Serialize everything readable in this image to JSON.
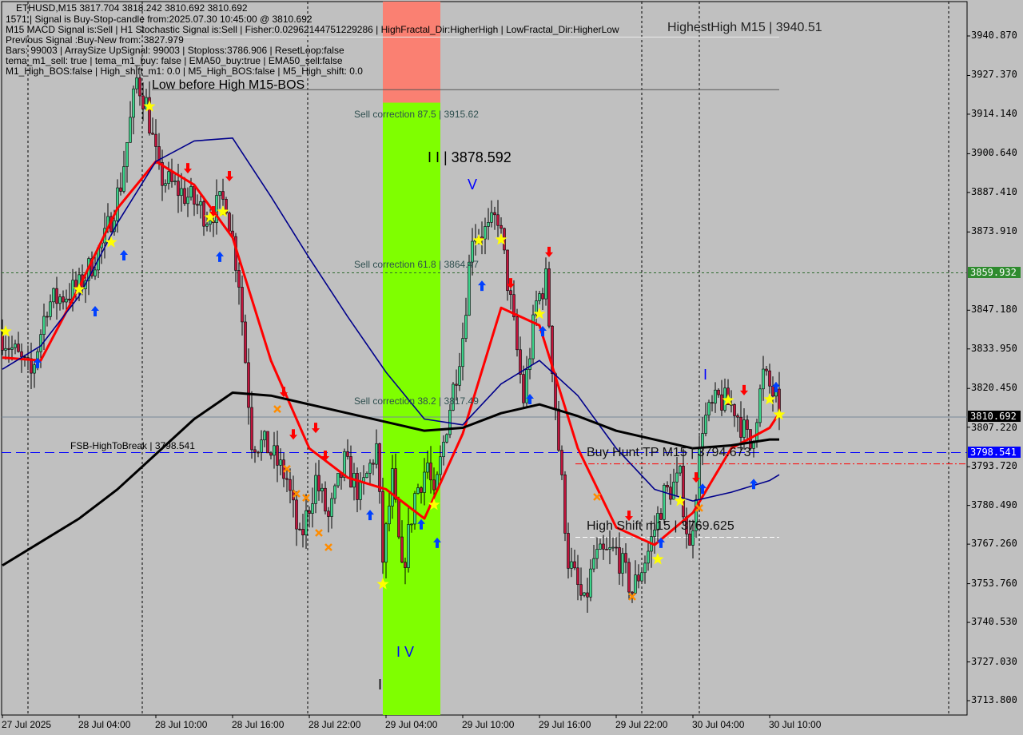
{
  "header": {
    "symbol_line": "ETHUSD,M15  3817.704 3818.242 3810.692 3810.692",
    "lines": [
      "1571 | Signal is Buy-Stop-candle from:2025.07.30 10:45:00 @ 3810.692",
      "M15 MACD Signal is:Sell | H1 Stochastic Signal is:Sell | Fisher:0.02962144751229286 | HighFractal_Dir:HigherHigh | LowFractal_Dir:HigherLow",
      "Previous Signal :Buy-New from: 3827.979",
      "Bars: 99003 | ArraySize UpSignal: 99003 | Stoploss:3786.906 | ResetLoop:false",
      "tema_m1_sell: true | tema_m1_buy: false | EMA50_buy:true | EMA50_sell:false",
      "M1_High_BOS:false | High_shift_m1: 0.0 | M5_High_BOS:false | M5_High_shift: 0.0"
    ]
  },
  "annotations": {
    "highest_high": "HighestHigh   M15 | 3940.51",
    "low_before_high": "Low before High   M15-BOS",
    "sell_corr_875": "Sell correction 87.5 | 3915.62",
    "sell_corr_618": "Sell correction 61.8 | 3864.47",
    "sell_corr_382": "Sell correction 38.2 | 3817.49",
    "wave_ii": "I I | 3878.592",
    "wave_v": "V",
    "wave_iv": "I V",
    "wave_i_low": "I",
    "wave_i_right": "I",
    "fsb": "FSB-HighToBreak | 3798.541",
    "buy_hunt": "Buy Hunt TP M15 | 3794.673",
    "high_shift": "High Shift m15 | 3769.625"
  },
  "price_labels": {
    "green": "3859.932",
    "current": "3810.692",
    "blue": "3798.541"
  },
  "colors": {
    "background": "#c0c0c0",
    "bull": "#3cd38a",
    "bear": "#c0143c",
    "ema_fast": "#ff0000",
    "ma_mid": "#00008b",
    "ma_slow": "#000000",
    "zone_sell": "#fa8072",
    "zone_buy": "#7fff00",
    "current_price_bg": "#000000",
    "green_level": "#2e8b2e",
    "blue_level": "#0000ff"
  },
  "chart_data": {
    "type": "candlestick",
    "title": "ETHUSD,M15",
    "y_ticks": [
      "3940.870",
      "3927.370",
      "3914.140",
      "3900.640",
      "3887.410",
      "3873.910",
      "3847.180",
      "3833.950",
      "3820.450",
      "3807.220",
      "3793.720",
      "3780.490",
      "3767.260",
      "3753.760",
      "3740.530",
      "3727.030",
      "3713.800"
    ],
    "x_ticks": [
      "27 Jul 2025",
      "28 Jul 04:00",
      "28 Jul 10:00",
      "28 Jul 16:00",
      "28 Jul 22:00",
      "29 Jul 04:00",
      "29 Jul 10:00",
      "29 Jul 16:00",
      "29 Jul 22:00",
      "30 Jul 04:00",
      "30 Jul 10:00"
    ],
    "ylim": [
      3713.8,
      3940.87
    ],
    "close_path": [
      [
        "2025-07-27 22:00",
        3838.5
      ],
      [
        "2025-07-28 00:15",
        3824.9
      ],
      [
        "2025-07-28 01:30",
        3849.4
      ],
      [
        "2025-07-28 04:00",
        3854.9
      ],
      [
        "2025-07-28 06:00",
        3871.3
      ],
      [
        "2025-07-28 07:15",
        3890.4
      ],
      [
        "2025-07-28 08:30",
        3925.9
      ],
      [
        "2025-07-28 09:15",
        3917.7
      ],
      [
        "2025-07-28 10:15",
        3893.1
      ],
      [
        "2025-07-28 12:45",
        3885.0
      ],
      [
        "2025-07-28 14:00",
        3879.5
      ],
      [
        "2025-07-28 15:30",
        3885.0
      ],
      [
        "2025-07-28 16:30",
        3857.6
      ],
      [
        "2025-07-28 17:30",
        3803.0
      ],
      [
        "2025-07-28 18:45",
        3800.3
      ],
      [
        "2025-07-28 20:15",
        3789.4
      ],
      [
        "2025-07-28 21:15",
        3767.6
      ],
      [
        "2025-07-28 22:30",
        3789.4
      ],
      [
        "2025-07-28 23:30",
        3775.8
      ],
      [
        "2025-07-29 00:45",
        3794.9
      ],
      [
        "2025-07-29 02:00",
        3784.0
      ],
      [
        "2025-07-29 03:15",
        3800.3
      ],
      [
        "2025-07-29 03:45",
        3762.0
      ],
      [
        "2025-07-29 04:30",
        3789.4
      ],
      [
        "2025-07-29 05:15",
        3756.6
      ],
      [
        "2025-07-29 06:15",
        3784.0
      ],
      [
        "2025-07-29 07:15",
        3794.9
      ],
      [
        "2025-07-29 07:45",
        3781.2
      ],
      [
        "2025-07-29 08:45",
        3808.5
      ],
      [
        "2025-07-29 10:00",
        3838.5
      ],
      [
        "2025-07-29 10:45",
        3874.0
      ],
      [
        "2025-07-29 12:00",
        3874.0
      ],
      [
        "2025-07-29 12:45",
        3879.5
      ],
      [
        "2025-07-29 13:45",
        3849.4
      ],
      [
        "2025-07-29 14:45",
        3816.7
      ],
      [
        "2025-07-29 15:45",
        3849.4
      ],
      [
        "2025-07-29 16:30",
        3857.6
      ],
      [
        "2025-07-29 17:30",
        3800.3
      ],
      [
        "2025-07-29 18:15",
        3762.0
      ],
      [
        "2025-07-29 19:30",
        3745.7
      ],
      [
        "2025-07-29 20:15",
        3762.0
      ],
      [
        "2025-07-29 22:00",
        3764.8
      ],
      [
        "2025-07-29 23:15",
        3751.2
      ],
      [
        "2025-07-30 00:30",
        3764.8
      ],
      [
        "2025-07-30 01:45",
        3784.0
      ],
      [
        "2025-07-30 03:00",
        3789.4
      ],
      [
        "2025-07-30 03:45",
        3764.8
      ],
      [
        "2025-07-30 04:45",
        3808.5
      ],
      [
        "2025-07-30 06:00",
        3816.7
      ],
      [
        "2025-07-30 07:15",
        3814.0
      ],
      [
        "2025-07-30 08:30",
        3800.3
      ],
      [
        "2025-07-30 09:30",
        3824.9
      ],
      [
        "2025-07-30 10:30",
        3816.7
      ],
      [
        "2025-07-30 10:45",
        3810.692
      ]
    ],
    "ma_times": [
      "2025-07-27 22:00",
      "2025-07-28 01:00",
      "2025-07-28 04:00",
      "2025-07-28 07:00",
      "2025-07-28 10:00",
      "2025-07-28 13:00",
      "2025-07-28 16:00",
      "2025-07-28 19:00",
      "2025-07-28 22:00",
      "2025-07-29 01:00",
      "2025-07-29 04:00",
      "2025-07-29 07:00",
      "2025-07-29 10:00",
      "2025-07-29 13:00",
      "2025-07-29 16:00",
      "2025-07-29 19:00",
      "2025-07-29 22:00",
      "2025-07-30 01:00",
      "2025-07-30 04:00",
      "2025-07-30 07:00",
      "2025-07-30 10:00",
      "2025-07-30 10:45"
    ],
    "series": [
      {
        "key": "ema_fast",
        "values": [
          3831,
          3830,
          3855,
          3882,
          3898,
          3890,
          3872,
          3830,
          3800,
          3790,
          3786,
          3776,
          3805,
          3848,
          3842,
          3800,
          3773,
          3767,
          3778,
          3800,
          3807,
          3812
        ]
      },
      {
        "key": "ma_mid",
        "values": [
          3827,
          3835,
          3852,
          3877,
          3898,
          3905,
          3906,
          3886,
          3865,
          3845,
          3826,
          3810,
          3808,
          3822,
          3830,
          3818,
          3800,
          3786,
          3782,
          3785,
          3789,
          3791
        ]
      },
      {
        "key": "ma_slow",
        "values": [
          3760,
          3768,
          3776,
          3786,
          3798,
          3810,
          3819,
          3818,
          3815,
          3812,
          3809,
          3806,
          3807,
          3812,
          3815,
          3811,
          3806,
          3803,
          3800,
          3801,
          3803,
          3803
        ]
      }
    ],
    "levels": {
      "green_dotted": 3859.932,
      "current": 3810.692,
      "fsb_blue": 3798.541,
      "buy_hunt_red": 3794.673,
      "high_shift_white": 3769.625,
      "highest_high": 3940.51,
      "low_before_high": 3922.5
    },
    "zones": {
      "start": "2025-07-29 03:45",
      "end": "2025-07-29 08:15",
      "sell_top": 3940.87,
      "split": 3915.62
    },
    "markers": {
      "stars": [
        [
          "2025-07-27 22:15",
          3839.9
        ],
        [
          "2025-07-28 04:00",
          3854.3
        ],
        [
          "2025-07-28 06:30",
          3870.4
        ],
        [
          "2025-07-28 09:30",
          3916.8
        ],
        [
          "2025-07-28 14:15",
          3878.9
        ],
        [
          "2025-07-28 15:15",
          3880.8
        ],
        [
          "2025-07-29 03:45",
          3753.6
        ],
        [
          "2025-07-29 07:45",
          3780.7
        ],
        [
          "2025-07-29 11:15",
          3871.0
        ],
        [
          "2025-07-29 13:00",
          3871.3
        ],
        [
          "2025-07-29 16:00",
          3845.9
        ],
        [
          "2025-07-30 01:15",
          3762.1
        ],
        [
          "2025-07-30 03:00",
          3782.0
        ],
        [
          "2025-07-30 06:45",
          3816.4
        ],
        [
          "2025-07-30 10:00",
          3816.7
        ],
        [
          "2025-07-30 10:45",
          3811.5
        ]
      ],
      "up_arrows": [
        [
          "2025-07-28 00:45",
          3829.0
        ],
        [
          "2025-07-28 05:15",
          3846.7
        ],
        [
          "2025-07-28 07:30",
          3865.8
        ],
        [
          "2025-07-28 15:00",
          3865.3
        ],
        [
          "2025-07-29 02:45",
          3777.1
        ],
        [
          "2025-07-29 06:45",
          3773.9
        ],
        [
          "2025-07-29 08:00",
          3767.6
        ],
        [
          "2025-07-29 11:30",
          3855.4
        ],
        [
          "2025-07-29 15:15",
          3816.7
        ],
        [
          "2025-07-29 16:15",
          3839.9
        ],
        [
          "2025-07-30 01:30",
          3767.6
        ],
        [
          "2025-07-30 04:45",
          3786.1
        ],
        [
          "2025-07-30 08:45",
          3787.7
        ],
        [
          "2025-07-30 10:30",
          3820.8
        ]
      ],
      "down_arrows": [
        [
          "2025-07-28 12:30",
          3895.8
        ],
        [
          "2025-07-28 14:30",
          3881.1
        ],
        [
          "2025-07-28 15:45",
          3893.1
        ],
        [
          "2025-07-28 20:00",
          3819.4
        ],
        [
          "2025-07-28 20:45",
          3804.9
        ],
        [
          "2025-07-28 22:30",
          3807.1
        ],
        [
          "2025-07-28 23:15",
          3797.6
        ],
        [
          "2025-07-29 13:45",
          3856.5
        ],
        [
          "2025-07-29 16:45",
          3867.2
        ],
        [
          "2025-07-29 23:00",
          3777.1
        ],
        [
          "2025-07-30 04:15",
          3790.2
        ],
        [
          "2025-07-30 08:00",
          3820.0
        ]
      ],
      "crosses": [
        [
          "2025-07-28 19:30",
          3813.4
        ],
        [
          "2025-07-28 20:15",
          3793.0
        ],
        [
          "2025-07-28 21:00",
          3784.5
        ],
        [
          "2025-07-28 21:45",
          3783.1
        ],
        [
          "2025-07-28 22:45",
          3771.1
        ],
        [
          "2025-07-28 23:30",
          3766.2
        ],
        [
          "2025-07-29 20:30",
          3783.4
        ],
        [
          "2025-07-29 23:15",
          3749.3
        ],
        [
          "2025-07-30 04:30",
          3779.6
        ]
      ]
    }
  }
}
